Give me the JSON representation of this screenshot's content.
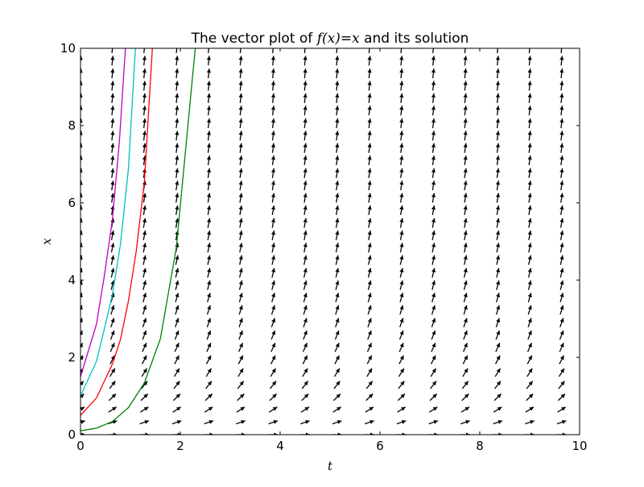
{
  "chart_data": {
    "type": "line",
    "title_prefix": "The vector plot of ",
    "title_math": "f(x)=x",
    "title_suffix": " and its solution",
    "xlabel": "t",
    "ylabel": "x",
    "xlim": [
      0,
      10
    ],
    "ylim": [
      0,
      10
    ],
    "xticks": [
      0,
      2,
      4,
      6,
      8,
      10
    ],
    "yticks": [
      0,
      2,
      4,
      6,
      8,
      10
    ],
    "xtick_labels": [
      "0",
      "2",
      "4",
      "6",
      "8",
      "10"
    ],
    "ytick_labels": [
      "0",
      "2",
      "4",
      "6",
      "8",
      "10"
    ],
    "grid": false,
    "series": [
      {
        "color": "#bf00bf",
        "x0": 1.5,
        "points": [
          [
            0,
            1.5
          ],
          [
            0.32,
            2.86
          ],
          [
            0.48,
            4.13
          ],
          [
            0.64,
            5.57
          ],
          [
            0.78,
            7.61
          ],
          [
            0.9,
            10.0
          ]
        ]
      },
      {
        "color": "#00bfbf",
        "x0": 1.0,
        "points": [
          [
            0,
            1.0
          ],
          [
            0.32,
            1.9
          ],
          [
            0.48,
            2.75
          ],
          [
            0.64,
            3.63
          ],
          [
            0.8,
            4.92
          ],
          [
            0.96,
            6.88
          ],
          [
            1.1,
            10.0
          ]
        ]
      },
      {
        "color": "#ff0000",
        "x0": 0.5,
        "points": [
          [
            0,
            0.5
          ],
          [
            0.32,
            0.95
          ],
          [
            0.64,
            1.83
          ],
          [
            0.8,
            2.46
          ],
          [
            0.96,
            3.46
          ],
          [
            1.12,
            4.78
          ],
          [
            1.28,
            6.55
          ],
          [
            1.44,
            10.0
          ]
        ]
      },
      {
        "color": "#008000",
        "x0": 0.1,
        "points": [
          [
            0,
            0.1
          ],
          [
            0.32,
            0.17
          ],
          [
            0.64,
            0.34
          ],
          [
            0.96,
            0.7
          ],
          [
            1.28,
            1.34
          ],
          [
            1.6,
            2.48
          ],
          [
            1.92,
            4.84
          ],
          [
            2.24,
            9.2
          ],
          [
            2.3,
            10.0
          ]
        ]
      }
    ],
    "quiver": {
      "field": "f(x)=x",
      "t_values": [
        0.0,
        0.64,
        1.28,
        1.93,
        2.57,
        3.21,
        3.86,
        4.5,
        5.14,
        5.79,
        6.43,
        7.07,
        7.71,
        8.36,
        9.0,
        9.64
      ],
      "x_values": [
        0.0,
        0.32,
        0.65,
        0.97,
        1.29,
        1.61,
        1.94,
        2.26,
        2.58,
        2.9,
        3.23,
        3.55,
        3.87,
        4.19,
        4.52,
        4.84,
        5.16,
        5.48,
        5.81,
        6.13,
        6.45,
        6.77,
        7.1,
        7.42,
        7.74,
        8.06,
        8.39,
        8.71,
        9.03,
        9.35,
        9.68,
        10.0
      ],
      "color": "#000000"
    }
  }
}
